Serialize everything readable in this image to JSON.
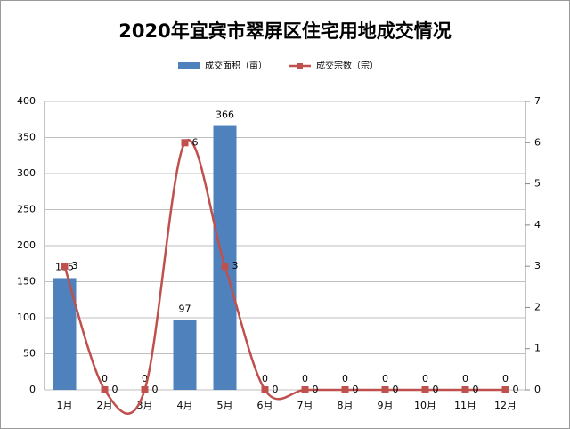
{
  "chart_data": {
    "type": "bar",
    "title": "2020年宜宾市翠屏区住宅用地成交情况",
    "categories": [
      "1月",
      "2月",
      "3月",
      "4月",
      "5月",
      "6月",
      "7月",
      "8月",
      "9月",
      "10月",
      "11月",
      "12月"
    ],
    "series": [
      {
        "name": "成交面积（亩）",
        "type": "bar",
        "color": "#4f81bd",
        "values": [
          155,
          0,
          0,
          97,
          366,
          0,
          0,
          0,
          0,
          0,
          0,
          0
        ]
      },
      {
        "name": "成交宗数（宗）",
        "type": "line",
        "axis": "y2",
        "color": "#c0504d",
        "values": [
          3,
          0,
          0,
          6,
          3,
          0,
          0,
          0,
          0,
          0,
          0,
          0
        ]
      }
    ],
    "ylim": [
      0,
      400
    ],
    "yticks": [
      0,
      50,
      100,
      150,
      200,
      250,
      300,
      350,
      400
    ],
    "y2lim": [
      0,
      7
    ],
    "y2ticks": [
      0,
      1,
      2,
      3,
      4,
      5,
      6,
      7
    ],
    "grid": true,
    "legend": "top"
  }
}
